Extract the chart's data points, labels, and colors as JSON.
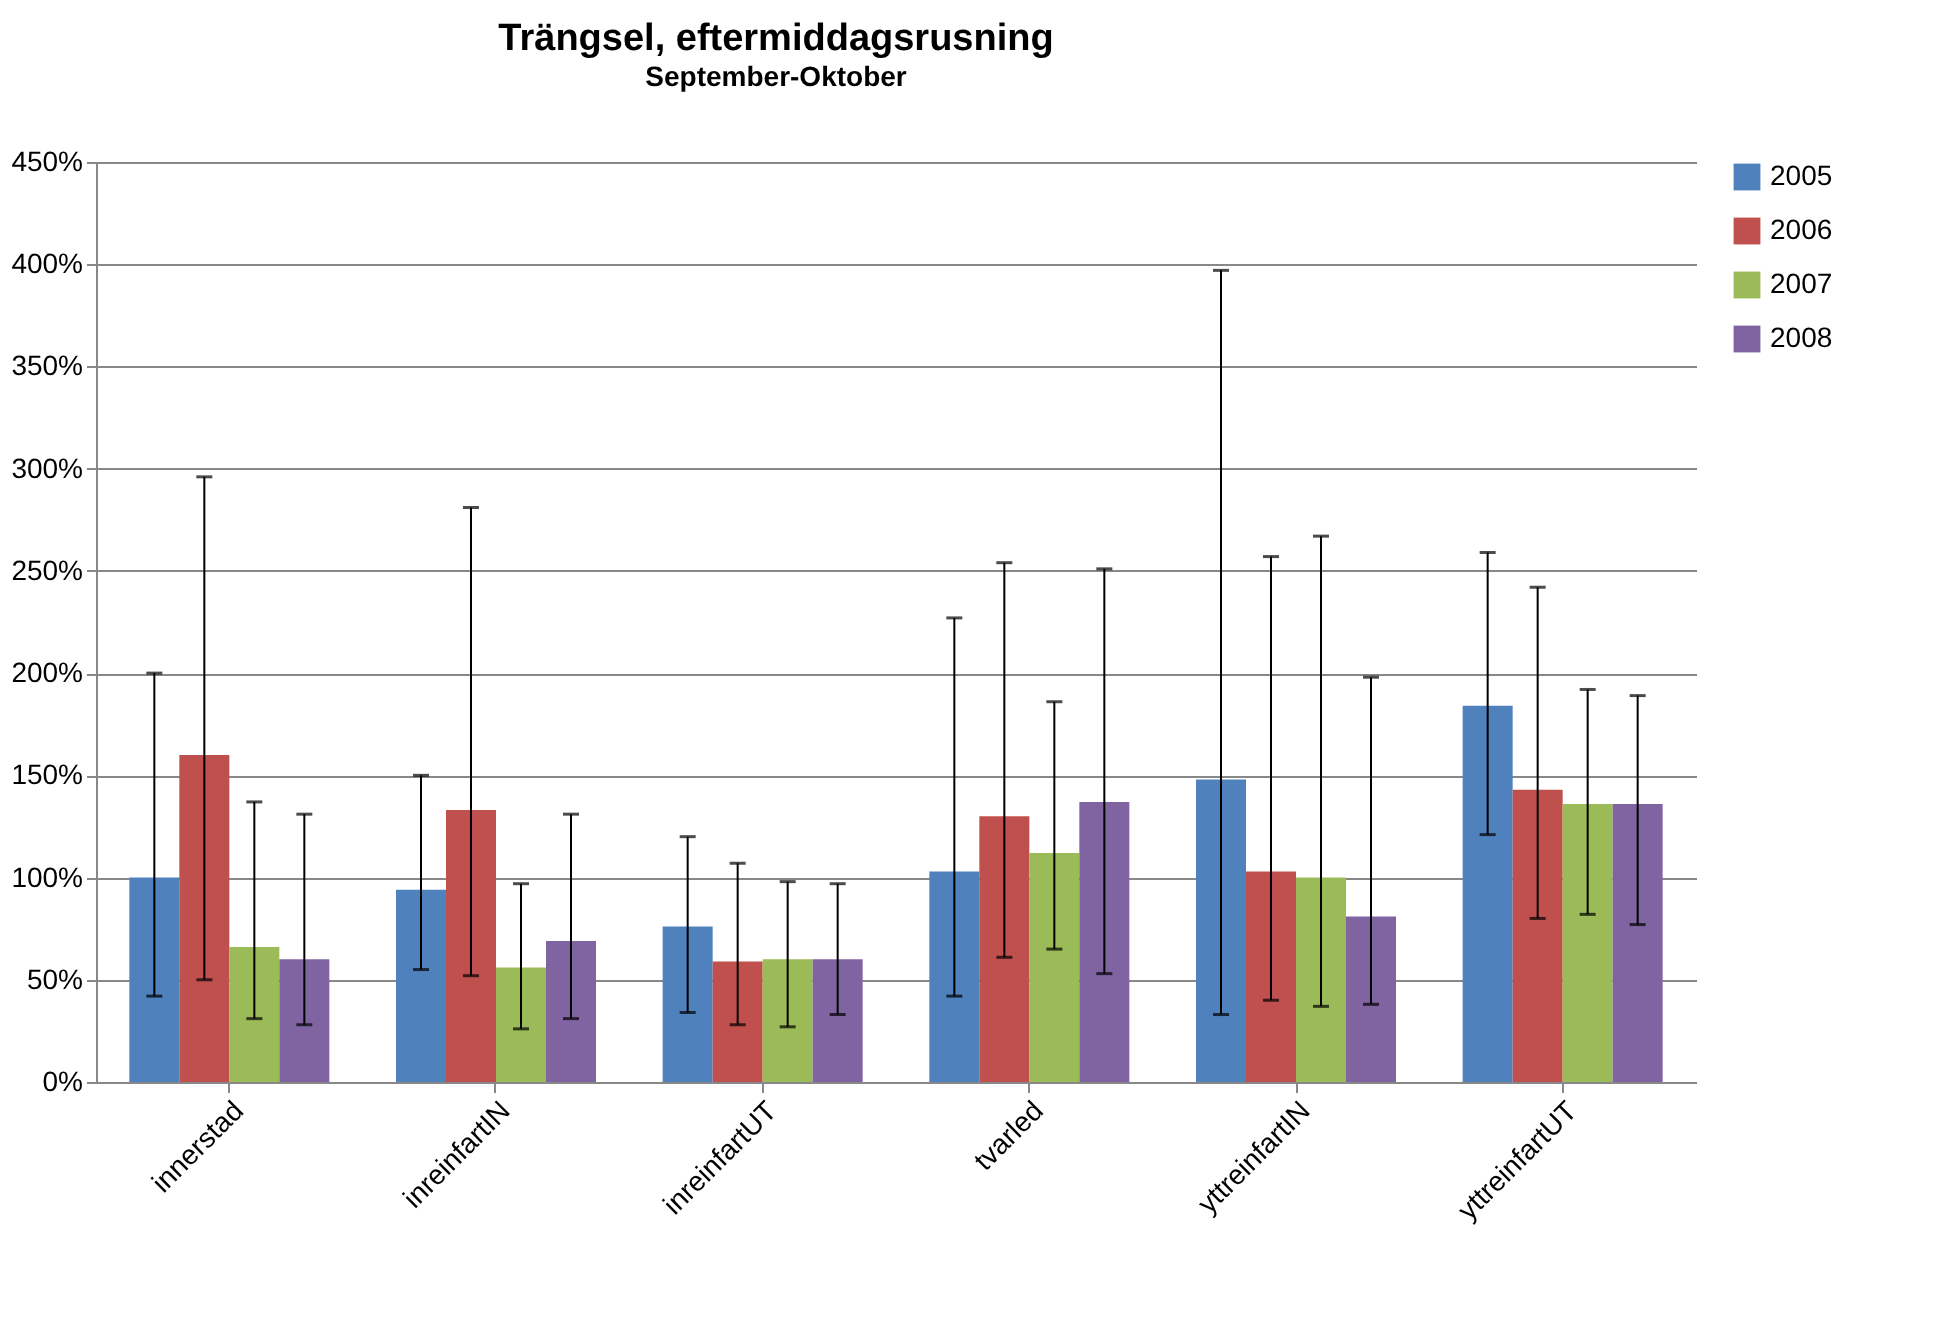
{
  "chart_data": {
    "type": "bar",
    "title": "Trängsel, eftermiddagsrusning",
    "subtitle": "September-Oktober",
    "categories": [
      "innerstad",
      "inreinfartIN",
      "inreinfartUT",
      "tvarled",
      "yttreinfartIN",
      "yttreinfartUT"
    ],
    "series": [
      {
        "name": "2005",
        "color": "#4f81bd",
        "values": [
          100,
          94,
          76,
          103,
          148,
          184
        ],
        "errors": [
          [
            42,
            200
          ],
          [
            55,
            150
          ],
          [
            34,
            120
          ],
          [
            42,
            227
          ],
          [
            33,
            397
          ],
          [
            121,
            259
          ]
        ]
      },
      {
        "name": "2006",
        "color": "#c0504d",
        "values": [
          160,
          133,
          59,
          130,
          103,
          143
        ],
        "errors": [
          [
            50,
            296
          ],
          [
            52,
            281
          ],
          [
            28,
            107
          ],
          [
            61,
            254
          ],
          [
            40,
            257
          ],
          [
            80,
            242
          ]
        ]
      },
      {
        "name": "2007",
        "color": "#9bbb59",
        "values": [
          66,
          56,
          60,
          112,
          100,
          136
        ],
        "errors": [
          [
            31,
            137
          ],
          [
            26,
            97
          ],
          [
            27,
            98
          ],
          [
            65,
            186
          ],
          [
            37,
            267
          ],
          [
            82,
            192
          ]
        ]
      },
      {
        "name": "2008",
        "color": "#8064a2",
        "values": [
          60,
          69,
          60,
          137,
          81,
          136
        ],
        "errors": [
          [
            28,
            131
          ],
          [
            31,
            131
          ],
          [
            33,
            97
          ],
          [
            53,
            251
          ],
          [
            38,
            198
          ],
          [
            77,
            189
          ]
        ]
      }
    ],
    "ylim": [
      0,
      450
    ],
    "yticks": [
      {
        "value": 0,
        "label": "0%"
      },
      {
        "value": 50,
        "label": "50%"
      },
      {
        "value": 100,
        "label": "100%"
      },
      {
        "value": 150,
        "label": "150%"
      },
      {
        "value": 200,
        "label": "200%"
      },
      {
        "value": 250,
        "label": "250%"
      },
      {
        "value": 300,
        "label": "300%"
      },
      {
        "value": 350,
        "label": "350%"
      },
      {
        "value": 400,
        "label": "400%"
      },
      {
        "value": 450,
        "label": "450%"
      }
    ],
    "grid": "y",
    "legend": "right"
  }
}
